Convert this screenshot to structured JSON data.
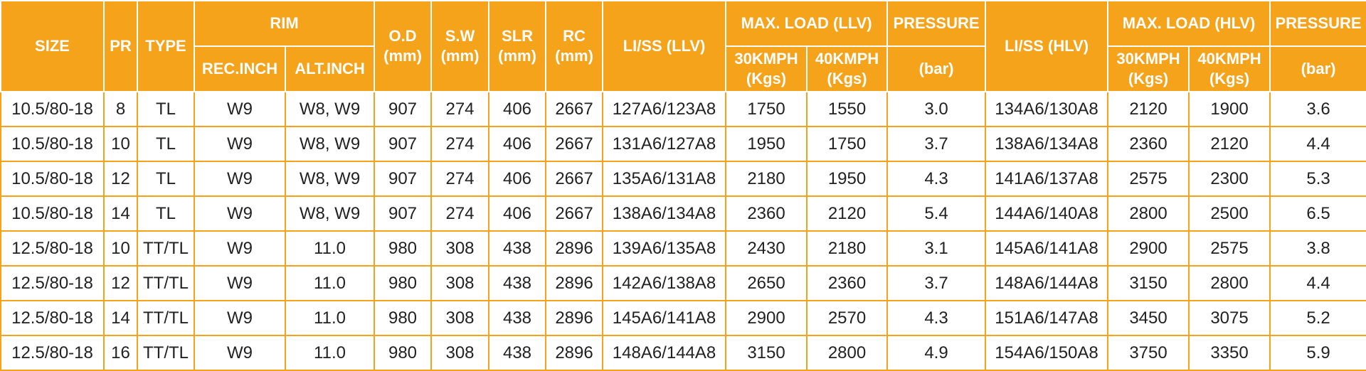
{
  "table": {
    "headers": {
      "size": "SIZE",
      "pr": "PR",
      "type": "TYPE",
      "rim": "RIM",
      "rec_inch": "REC.INCH",
      "alt_inch": "ALT.INCH",
      "od_1": "O.D",
      "od_2": "(mm)",
      "sw_1": "S.W",
      "sw_2": "(mm)",
      "slr_1": "SLR",
      "slr_2": "(mm)",
      "rc_1": "RC",
      "rc_2": "(mm)",
      "liss_llv": "LI/SS (LLV)",
      "max_load_llv": "MAX. LOAD (LLV)",
      "llv_30_1": "30KMPH",
      "llv_30_2": "(Kgs)",
      "llv_40_1": "40KMPH",
      "llv_40_2": "(Kgs)",
      "pressure_llv": "PRESSURE",
      "pressure_llv_unit": "(bar)",
      "liss_hlv": "LI/SS (HLV)",
      "max_load_hlv": "MAX. LOAD (HLV)",
      "hlv_30_1": "30KMPH",
      "hlv_30_2": "(Kgs)",
      "hlv_40_1": "40KMPH",
      "hlv_40_2": "(Kgs)",
      "pressure_hlv": "PRESSURE",
      "pressure_hlv_unit": "(bar)"
    },
    "rows": [
      [
        "10.5/80-18",
        "8",
        "TL",
        "W9",
        "W8, W9",
        "907",
        "274",
        "406",
        "2667",
        "127A6/123A8",
        "1750",
        "1550",
        "3.0",
        "134A6/130A8",
        "2120",
        "1900",
        "3.6"
      ],
      [
        "10.5/80-18",
        "10",
        "TL",
        "W9",
        "W8, W9",
        "907",
        "274",
        "406",
        "2667",
        "131A6/127A8",
        "1950",
        "1750",
        "3.7",
        "138A6/134A8",
        "2360",
        "2120",
        "4.4"
      ],
      [
        "10.5/80-18",
        "12",
        "TL",
        "W9",
        "W8, W9",
        "907",
        "274",
        "406",
        "2667",
        "135A6/131A8",
        "2180",
        "1950",
        "4.3",
        "141A6/137A8",
        "2575",
        "2300",
        "5.3"
      ],
      [
        "10.5/80-18",
        "14",
        "TL",
        "W9",
        "W8, W9",
        "907",
        "274",
        "406",
        "2667",
        "138A6/134A8",
        "2360",
        "2120",
        "5.4",
        "144A6/140A8",
        "2800",
        "2500",
        "6.5"
      ],
      [
        "12.5/80-18",
        "10",
        "TT/TL",
        "W9",
        "11.0",
        "980",
        "308",
        "438",
        "2896",
        "139A6/135A8",
        "2430",
        "2180",
        "3.1",
        "145A6/141A8",
        "2900",
        "2575",
        "3.8"
      ],
      [
        "12.5/80-18",
        "12",
        "TT/TL",
        "W9",
        "11.0",
        "980",
        "308",
        "438",
        "2896",
        "142A6/138A8",
        "2650",
        "2360",
        "3.7",
        "148A6/144A8",
        "3150",
        "2800",
        "4.4"
      ],
      [
        "12.5/80-18",
        "14",
        "TT/TL",
        "W9",
        "11.0",
        "980",
        "308",
        "438",
        "2896",
        "145A6/141A8",
        "2900",
        "2570",
        "4.3",
        "151A6/147A8",
        "3450",
        "3075",
        "5.2"
      ],
      [
        "12.5/80-18",
        "16",
        "TT/TL",
        "W9",
        "11.0",
        "980",
        "308",
        "438",
        "2896",
        "148A6/144A8",
        "3150",
        "2800",
        "4.9",
        "154A6/150A8",
        "3750",
        "3350",
        "5.9"
      ]
    ],
    "colors": {
      "header_bg": "#f5a31a",
      "header_text": "#ffffff",
      "border": "#f5a31a",
      "cell_text": "#222222"
    }
  }
}
